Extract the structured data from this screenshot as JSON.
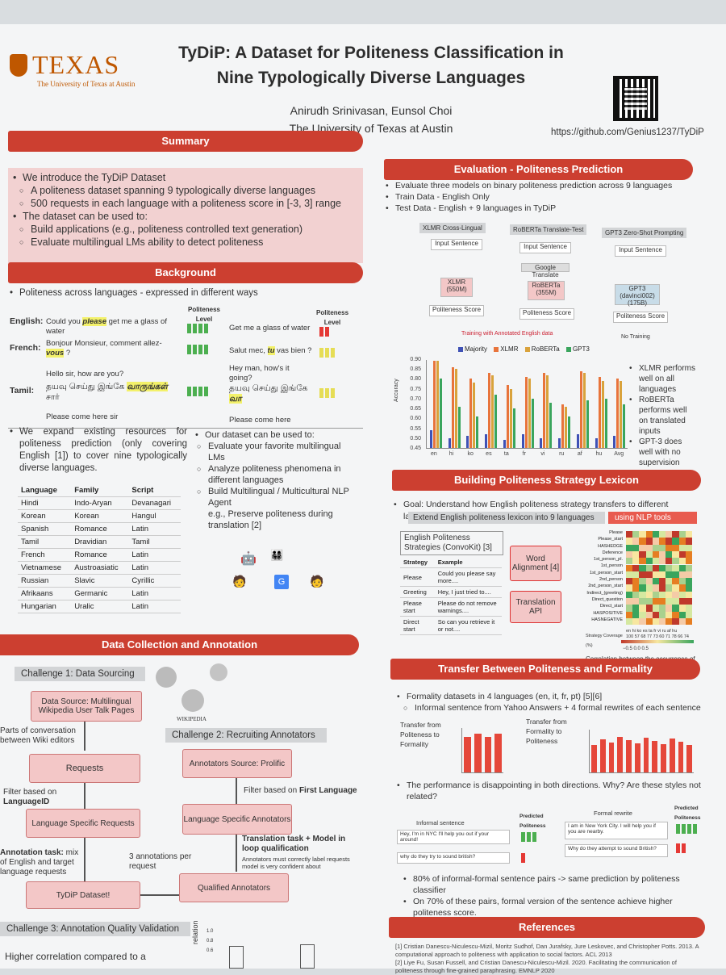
{
  "header": {
    "logo_text": "TEXAS",
    "logo_sub": "The University of Texas at Austin",
    "title_line1": "TyDiP: A Dataset for Politeness Classification in",
    "title_line2": "Nine Typologically Diverse Languages",
    "authors": "Anirudh Srinivasan, Eunsol Choi",
    "affiliation": "The University of Texas at Austin",
    "github": "https://github.com/Genius1237/TyDiP"
  },
  "summary": {
    "heading": "Summary",
    "b1": "We introduce the TyDiP Dataset",
    "b1a": "A politeness dataset spanning 9 typologically diverse languages",
    "b1b": "500 requests in each language with a politeness score in [-3, 3] range",
    "b2": "The dataset can be used to:",
    "b2a": "Build applications (e.g., politeness controlled text generation)",
    "b2b": "Evaluate multilingual LMs ability to detect politeness"
  },
  "background": {
    "heading": "Background",
    "intro": "Politeness across languages - expressed in different ways",
    "pl1": "Politeness Level",
    "pl2": "Politeness Level",
    "english_lbl": "English:",
    "english_a1": "Could you ",
    "english_hl": "please",
    "english_a2": " get me a glass of water",
    "english_b": "Get me a glass of water",
    "french_lbl": "French:",
    "french_a1": "Bonjour Monsieur, comment allez-",
    "french_hl": "vous",
    "french_a2": " ?",
    "french_b1": "Salut mec, ",
    "french_hl2": "tu",
    "french_b2": " vas bien ?",
    "tamil_lbl": "Tamil:",
    "tamil_gloss_a": "Hello sir, how are you?",
    "tamil_gloss_b": "Hey man, how's it going?",
    "tamil_a1": "தயவு செய்து இங்கே ",
    "tamil_hl": "வாருங்கள்",
    "tamil_a2": " சார்",
    "tamil_b1": "தயவு செய்து இங்கே ",
    "tamil_hl2": "வா",
    "tamil_en_a": "Please come here sir",
    "tamil_en_b": "Please come here",
    "expand": "We expand existing resources for politeness prediction (only covering English [1]) to cover nine typologically diverse languages.",
    "usage_head": "Our dataset can be used to:",
    "use1": "Evaluate your favorite multilingual LMs",
    "use2": "Analyze politeness phenomena in different languages",
    "use3": "Build Multilingual / Multicultural NLP Agent",
    "use3b": "e.g., Preserve politeness during translation [2]",
    "table_headers": [
      "Language",
      "Family",
      "Script"
    ],
    "table_rows": [
      [
        "Hindi",
        "Indo-Aryan",
        "Devanagari"
      ],
      [
        "Korean",
        "Korean",
        "Hangul"
      ],
      [
        "Spanish",
        "Romance",
        "Latin"
      ],
      [
        "Tamil",
        "Dravidian",
        "Tamil"
      ],
      [
        "French",
        "Romance",
        "Latin"
      ],
      [
        "Vietnamese",
        "Austroasiatic",
        "Latin"
      ],
      [
        "Russian",
        "Slavic",
        "Cyrillic"
      ],
      [
        "Afrikaans",
        "Germanic",
        "Latin"
      ],
      [
        "Hungarian",
        "Uralic",
        "Latin"
      ]
    ]
  },
  "data_collection": {
    "heading": "Data Collection and Annotation",
    "challenge1": "Challenge 1: Data Sourcing",
    "source": "Data Source: Multilingual Wikipedia User Talk Pages",
    "parts": "Parts of conversation between Wiki editors",
    "requests": "Requests",
    "filter_lang": "Filter based on",
    "filter_lang2": "LanguageID",
    "lang_requests": "Language Specific Requests",
    "ann_task1": "Annotation task:",
    "ann_task2": " mix of English and target language requests",
    "tydip": "TyDiP Dataset!",
    "three_ann": "3 annotations per request",
    "challenge2": "Challenge 2: Recruiting Annotators",
    "prolific": "Annotators Source: Prolific",
    "filter_first1": "Filter based on ",
    "filter_first2": "First Language",
    "lang_annotators": "Language Specific Annotators",
    "translation_task": "Translation task + Model in loop qualification",
    "translation_sub": "Annotators must correctly label requests model is very confident about",
    "qualified": "Qualified Annotators",
    "challenge3": "Challenge 3: Annotation Quality Validation",
    "higher": "Higher correlation compared to a",
    "correlation_lbl": "relation",
    "yticks": [
      "1.0",
      "0.8",
      "0.6"
    ],
    "wikipedia": "WIKIPEDIA"
  },
  "evaluation": {
    "heading": "Evaluation - Politeness Prediction",
    "b1": "Evaluate three models on binary politeness prediction across 9 languages",
    "b2": "Train Data - English Only",
    "b3": "Test Data - English + 9 languages in TyDiP",
    "col1": "XLMR Cross-Lingual",
    "col2": "RoBERTa Translate-Test",
    "col3": "GPT3 Zero-Shot Prompting",
    "input": "Input Sentence",
    "google": "Google Translate",
    "xlmr": "XLMR (550M)",
    "roberta": "RoBERTa (355M)",
    "gpt3": "GPT3 (davinci002) (175B)",
    "score": "Politeness Score",
    "training": "Training with Annotated English data",
    "no_training": "No Training",
    "note1": "XLMR performs well on all languages",
    "note2": "RoBERTa performs well on translated inputs",
    "note3": "GPT-3 does well with no supervision",
    "ylabel": "Accuracy"
  },
  "chart_data": {
    "type": "bar",
    "categories": [
      "en",
      "hi",
      "ko",
      "es",
      "ta",
      "fr",
      "vi",
      "ru",
      "af",
      "hu",
      "Avg"
    ],
    "series": [
      {
        "name": "Majority",
        "values": [
          0.54,
          0.5,
          0.51,
          0.52,
          0.49,
          0.52,
          0.5,
          0.5,
          0.52,
          0.5,
          0.51
        ]
      },
      {
        "name": "XLMR",
        "values": [
          0.89,
          0.86,
          0.8,
          0.83,
          0.77,
          0.81,
          0.83,
          0.67,
          0.84,
          0.81,
          0.8
        ]
      },
      {
        "name": "RoBERTa",
        "values": [
          0.89,
          0.85,
          0.78,
          0.82,
          0.75,
          0.8,
          0.82,
          0.66,
          0.83,
          0.79,
          0.79
        ]
      },
      {
        "name": "GPT3",
        "values": [
          0.8,
          0.66,
          0.61,
          0.72,
          0.65,
          0.7,
          0.68,
          0.61,
          0.69,
          0.7,
          0.67
        ]
      }
    ],
    "ylabel": "Accuracy",
    "ylim": [
      0.45,
      0.9
    ],
    "yticks": [
      "0.90",
      "0.85",
      "0.80",
      "0.75",
      "0.70",
      "0.65",
      "0.60",
      "0.55",
      "0.50",
      "0.45"
    ],
    "colors": {
      "Majority": "#3f51b5",
      "XLMR": "#e8743b",
      "RoBERTa": "#d9a23b",
      "GPT3": "#3aa55d"
    }
  },
  "lexicon": {
    "heading": "Building Politeness Strategy Lexicon",
    "goal": "Goal: Understand how English politeness strategy transfers to different languages",
    "extend": "Extend English politeness lexicon into 9 languages",
    "nlp_tools": "using NLP tools",
    "convokit": "English Politeness Strategies (ConvoKit) [3]",
    "strategy_h": "Strategy",
    "example_h": "Example",
    "rows": [
      [
        "Please",
        "Could you please say more...."
      ],
      [
        "Greeting",
        "Hey, I just tried to...."
      ],
      [
        "Please start",
        "Please do not remove warnings...."
      ],
      [
        "Direct start",
        "So can you retrieve it or not...."
      ]
    ],
    "word_align": "Word Alignment [4]",
    "translation_api": "Translation API",
    "heat_labels": [
      "Please",
      "Please_start",
      "HASHEDGE",
      "Deference",
      "1st_person_pl.",
      "1st_person",
      "1st_person_start",
      "2nd_person",
      "2nd_person_start",
      "Indirect_(greeting)",
      "Direct_question",
      "Direct_start",
      "HASPOSITIVE",
      "HASNEGATIVE"
    ],
    "heat_cols": "en hi ko es ta fr vi ru af hu",
    "coverage": "Strategy Coverage (%)",
    "coverage_vals": "100 57 68 77 73 60 71 78 66 74",
    "scale": "−0.5   0.0   0.5",
    "caption": "Correlation between the occurrence of each strategy and the politeness score"
  },
  "transfer": {
    "heading": "Transfer Between Politeness and Formality",
    "b1": "Formality datasets in 4 languages (en, it, fr, pt) [5][6]",
    "b1a": "Informal sentence from Yahoo Answers + 4 formal rewrites of each sentence",
    "chart1_title": "Transfer from Politeness to Formality",
    "chart2_title": "Transfer from Formality to Politeness",
    "b2": "The performance is disappointing in both directions. Why? Are these styles not related?",
    "informal_h": "Informal sentence",
    "predicted_h": "Predicted Politeness",
    "formal_h": "Formal rewrite",
    "predicted_h2": "Predicted Politeness",
    "inf1": "Hey, I'm in NYC I'll help you out if your around!",
    "inf2": "why do they try to sound british?",
    "for1": "I am in New York City. I will help you if you are nearby.",
    "for2": "Why do they attempt to sound British?",
    "b3": "80% of informal-formal sentence pairs -> same prediction by politeness classifier",
    "b4": "On 70% of these pairs, formal version of the sentence achieve higher politeness score."
  },
  "references": {
    "heading": "References",
    "r1": "[1] Cristian Danescu-Niculescu-Mizil, Moritz Sudhof, Dan Jurafsky, Jure Leskovec, and Christopher Potts. 2013. A computational approach to politeness with application to social factors. ACL 2013",
    "r2": "[2] Liye Fu, Susan Fussell, and Cristian Danescu-Niculescu-Mizil. 2020. Facilitating the communication of politeness through fine-grained paraphrasing. EMNLP 2020"
  }
}
